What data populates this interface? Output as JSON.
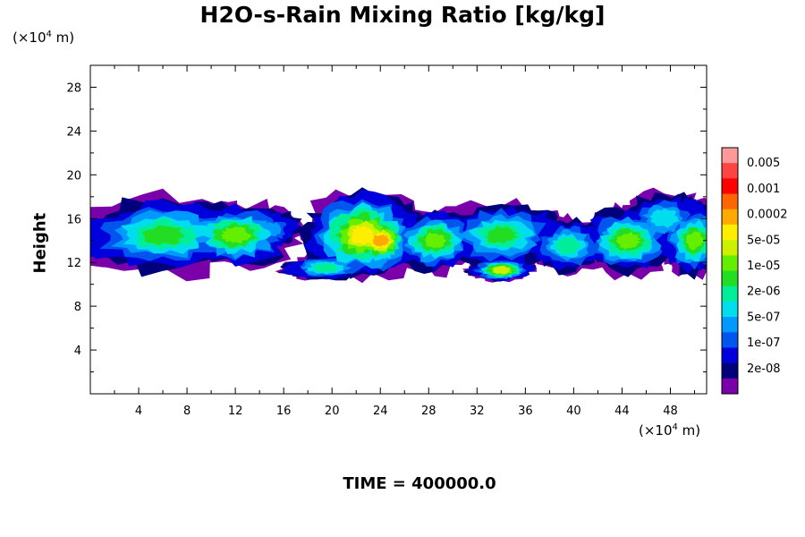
{
  "chart_data": {
    "type": "heatmap",
    "title": "H2O-s-Rain Mixing Ratio [kg/kg]",
    "ylabel": "Height",
    "xlabel": "",
    "x_unit_prefix": "(×10",
    "x_unit_exp": "4",
    "x_unit_suffix": " m)",
    "y_unit_prefix": "(×10",
    "y_unit_exp": "4",
    "y_unit_suffix": " m)",
    "xlim": [
      0,
      51
    ],
    "ylim": [
      0,
      30
    ],
    "xticks": [
      "4",
      "8",
      "12",
      "16",
      "20",
      "24",
      "28",
      "32",
      "36",
      "40",
      "44",
      "48"
    ],
    "yticks": [
      "4",
      "8",
      "12",
      "16",
      "20",
      "24",
      "28"
    ],
    "footer": "TIME = 400000.0",
    "colorbar": {
      "labels": [
        "0.005",
        "0.001",
        "0.0002",
        "5e-05",
        "1e-05",
        "2e-06",
        "5e-07",
        "1e-07",
        "2e-08"
      ],
      "colors": [
        "#ff9999",
        "#ff4444",
        "#ff0000",
        "#ff6600",
        "#ffaa00",
        "#ffee00",
        "#ccf000",
        "#66ee00",
        "#22dd22",
        "#00ee99",
        "#00ddee",
        "#0099ff",
        "#0055ee",
        "#0000dd",
        "#00007a",
        "#7a00aa"
      ]
    }
  }
}
